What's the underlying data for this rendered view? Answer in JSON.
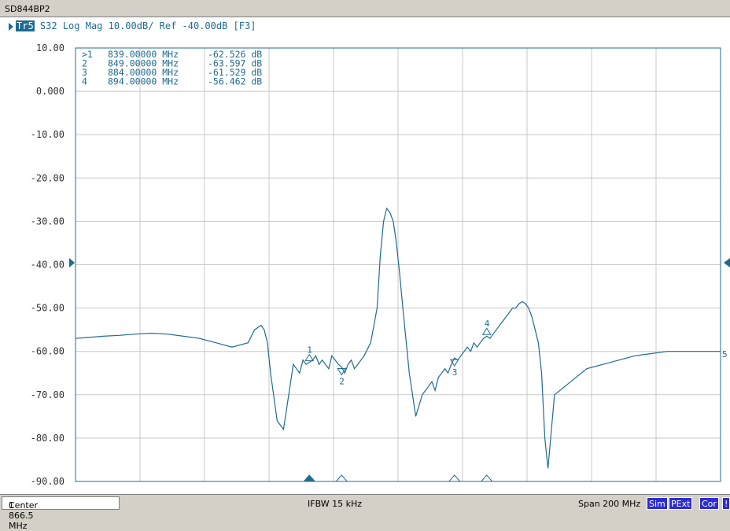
{
  "window": {
    "title": "SD844BP2"
  },
  "trace": {
    "id": "Tr5",
    "description": "S32 Log Mag 10.00dB/ Ref -40.00dB [F3]",
    "color": "#1f6b91"
  },
  "markers_table": [
    {
      "label": ">1",
      "freq": "839.00000 MHz",
      "value": "-62.526 dB"
    },
    {
      "label": "2",
      "freq": "849.00000 MHz",
      "value": "-63.597 dB"
    },
    {
      "label": "3",
      "freq": "884.00000 MHz",
      "value": "-61.529 dB"
    },
    {
      "label": "4",
      "freq": "894.00000 MHz",
      "value": "-56.462 dB"
    }
  ],
  "chart_data": {
    "type": "line",
    "xlim": [
      766.5,
      966.5
    ],
    "ylim": [
      -90,
      10
    ],
    "y_ticks": [
      "10.00",
      "0.000",
      "-10.00",
      "-20.00",
      "-30.00",
      "-40.00",
      "-50.00",
      "-60.00",
      "-70.00",
      "-80.00",
      "-90.00"
    ],
    "x_divisions": 10,
    "reference_level": -40,
    "grid": true,
    "series": [
      {
        "x": [
          766.5,
          770,
          775,
          780,
          785,
          790,
          795,
          800,
          805,
          810,
          815,
          820,
          822,
          824,
          825,
          826,
          827,
          829,
          831,
          833,
          834,
          835,
          836,
          837,
          838,
          839,
          840,
          841,
          842,
          843,
          844,
          845,
          846,
          847,
          848,
          849,
          850,
          851,
          852,
          853,
          854,
          856,
          858,
          860,
          861,
          862,
          863,
          864,
          865,
          866,
          867,
          868,
          870,
          872,
          874,
          876,
          877,
          878,
          879,
          880,
          881,
          882,
          883,
          884,
          885,
          886,
          887,
          888,
          889,
          890,
          891,
          892,
          893,
          894,
          895,
          896,
          897,
          898,
          899,
          900,
          901,
          902,
          903,
          904,
          905,
          906,
          907,
          908,
          909,
          910,
          911,
          912,
          913,
          915,
          920,
          925,
          930,
          935,
          940,
          945,
          950,
          955,
          960,
          966.5
        ],
        "y": [
          -57,
          -56.8,
          -56.5,
          -56.3,
          -56,
          -55.8,
          -56,
          -56.5,
          -57,
          -58,
          -59,
          -58,
          -55,
          -54,
          -55,
          -58,
          -65,
          -76,
          -78,
          -68,
          -63,
          -64,
          -65,
          -62,
          -63,
          -62.5,
          -62,
          -61,
          -63,
          -62,
          -63,
          -64,
          -61,
          -62,
          -63,
          -63.6,
          -65,
          -63,
          -62,
          -64,
          -63,
          -61,
          -58,
          -50,
          -38,
          -30,
          -27,
          -28,
          -30,
          -35,
          -42,
          -50,
          -65,
          -75,
          -70,
          -68,
          -67,
          -69,
          -66,
          -65,
          -64,
          -65,
          -63,
          -61.5,
          -62,
          -61,
          -60,
          -59,
          -60,
          -58,
          -59,
          -58,
          -57,
          -56.5,
          -57,
          -56,
          -55,
          -54,
          -53,
          -52,
          -51,
          -50,
          -50,
          -49,
          -48.5,
          -49,
          -50,
          -52,
          -55,
          -58,
          -65,
          -80,
          -87,
          -70,
          -67,
          -64,
          -63,
          -62,
          -61,
          -60.5,
          -60,
          -60,
          -60,
          -60
        ]
      }
    ],
    "markers": [
      {
        "label": "1",
        "x": 839,
        "y": -62.526
      },
      {
        "label": "2",
        "x": 849,
        "y": -63.597
      },
      {
        "label": "3",
        "x": 884,
        "y": -61.529
      },
      {
        "label": "4",
        "x": 894,
        "y": -56.462
      }
    ],
    "end_label": "5"
  },
  "status": {
    "channel": "1",
    "center": "Center 866.5 MHz",
    "ifbw": "IFBW 15 kHz",
    "span": "Span 200 MHz",
    "badges": [
      "Sim",
      "PExt",
      "Cor",
      "!"
    ]
  }
}
